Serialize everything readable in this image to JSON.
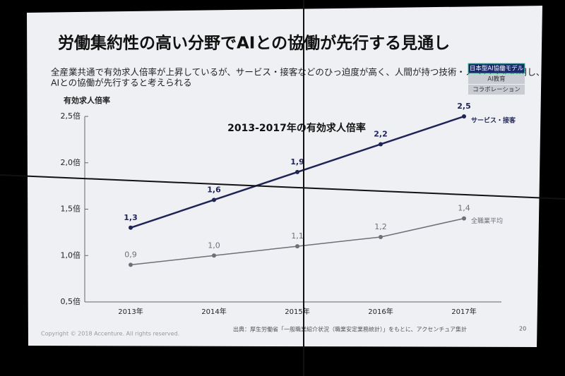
{
  "slide": {
    "title": "労働集約性の高い分野でAIとの協働が先行する見通し",
    "subtitle": [
      "全産業共通で有効求人倍率が上昇しているが、サービス・接客などのひっ迫度が高く、人間が持つ技術・ノウハウを活用し、",
      "AIとの協働が先行すると考えられる"
    ],
    "badges": [
      "日本型AI協働モデル",
      "AI教育",
      "コラボレーション"
    ],
    "copyright": "Copyright © 2018 Accenture. All rights reserved.",
    "source": "出典：厚生労働省「一般職業紹介状況（職業安定業務統計）」をもとに、アクセンチュア集計",
    "page": "20"
  },
  "chart_data": {
    "type": "line",
    "title": "2013-2017年の有効求人倍率",
    "ylabel": "有効求人倍率",
    "categories": [
      "2013年",
      "2014年",
      "2015年",
      "2016年",
      "2017年"
    ],
    "series": [
      {
        "name": "サービス・接客",
        "color": "#1e2456",
        "values": [
          1.3,
          1.6,
          1.9,
          2.2,
          2.5
        ],
        "value_labels": [
          "1,3",
          "1,6",
          "1,9",
          "2,2",
          "2,5"
        ]
      },
      {
        "name": "全職業平均",
        "color": "#6e7078",
        "values": [
          0.9,
          1.0,
          1.1,
          1.2,
          1.4
        ],
        "value_labels": [
          "0,9",
          "1,0",
          "1,1",
          "1,2",
          "1,4"
        ]
      }
    ],
    "ylim": [
      0.5,
      2.5
    ],
    "yticks": [
      {
        "value": 0.5,
        "label": "0,5倍"
      },
      {
        "value": 1.0,
        "label": "1,0倍"
      },
      {
        "value": 1.5,
        "label": "1,5倍"
      },
      {
        "value": 2.0,
        "label": "2,0倍"
      },
      {
        "value": 2.5,
        "label": "2,5倍"
      }
    ]
  }
}
